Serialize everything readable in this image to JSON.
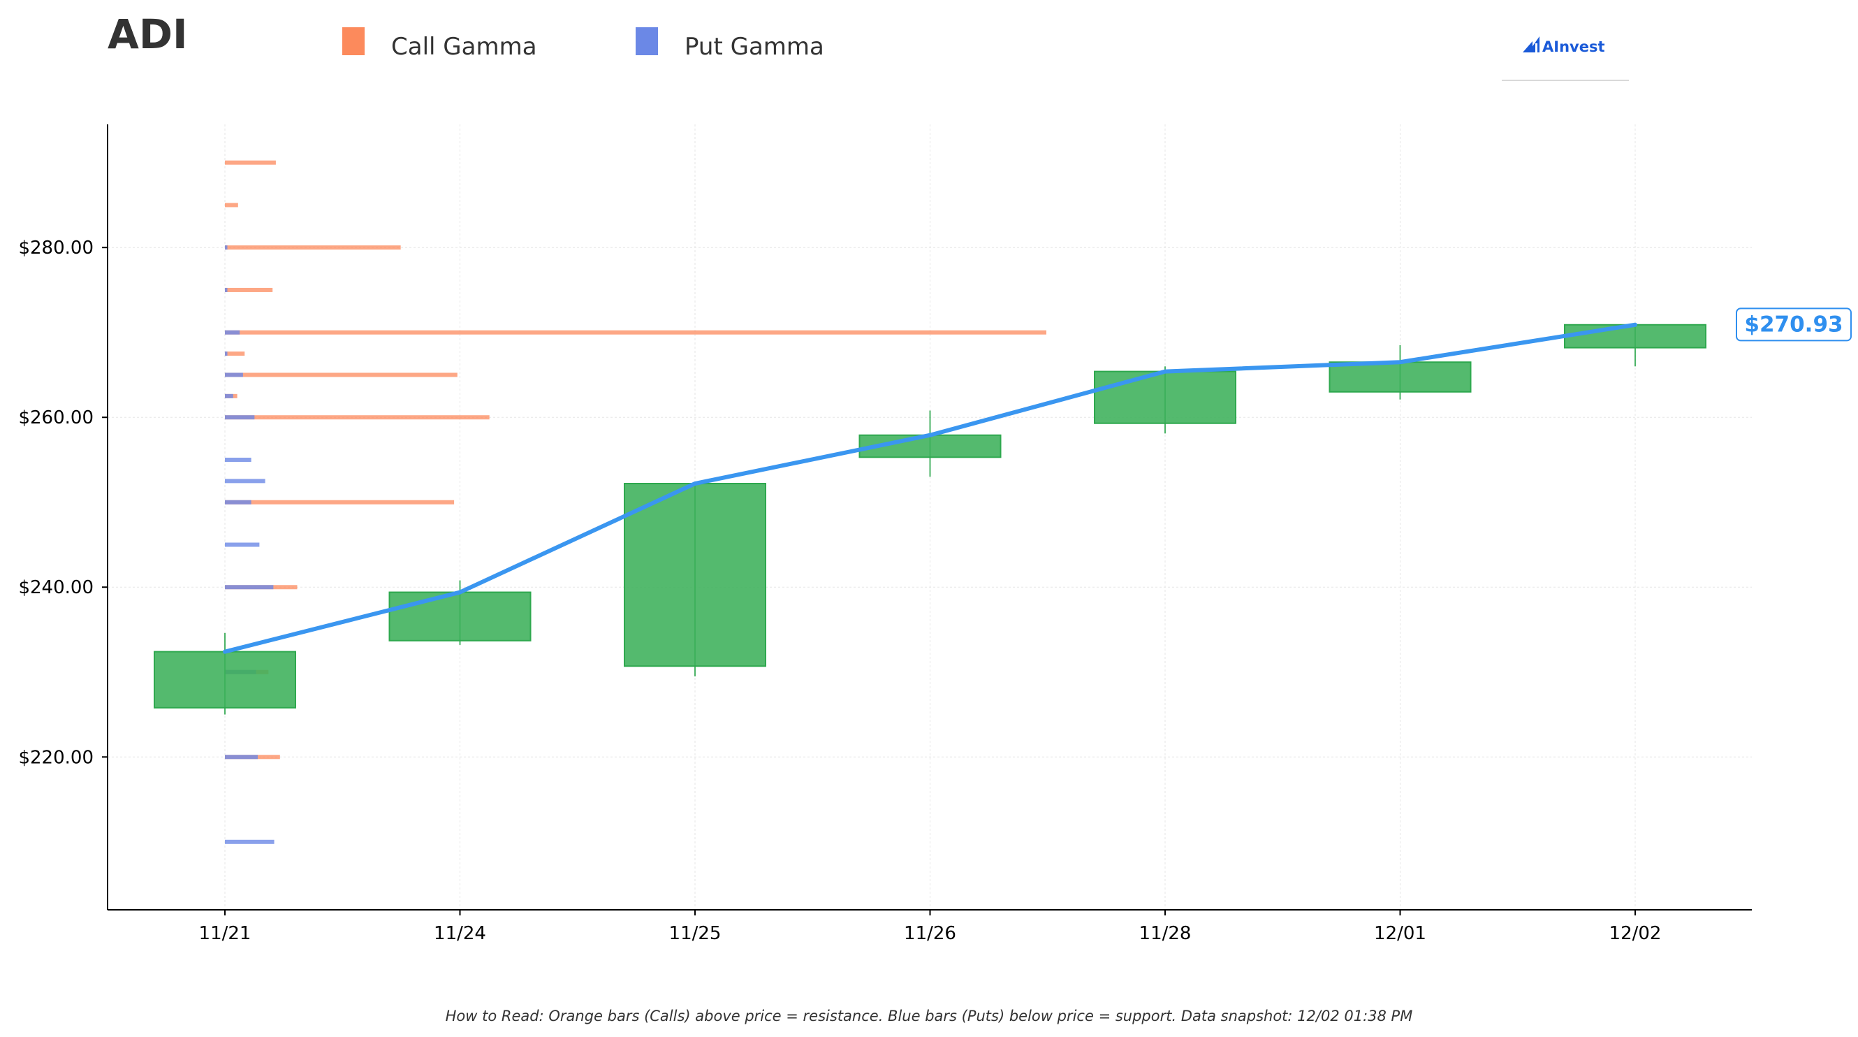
{
  "chart_data": {
    "type": "candlestick",
    "ticker": "ADI",
    "brand": "AInvest",
    "legend": [
      {
        "label": "Call Gamma",
        "color": "#fc8a5c"
      },
      {
        "label": "Put Gamma",
        "color": "#6b88e6"
      }
    ],
    "categories": [
      "11/21",
      "11/24",
      "11/25",
      "11/26",
      "11/28",
      "12/01",
      "12/02"
    ],
    "y_ticks": [
      {
        "value": 220,
        "label": "$220.00"
      },
      {
        "value": 240,
        "label": "$240.00"
      },
      {
        "value": 260,
        "label": "$260.00"
      },
      {
        "value": 280,
        "label": "$280.00"
      }
    ],
    "ylim": [
      202,
      294.5
    ],
    "grid": true,
    "candles": [
      {
        "date": "11/21",
        "open": 225.8,
        "close": 232.4,
        "high": 234.6,
        "low": 225.0
      },
      {
        "date": "11/24",
        "open": 233.7,
        "close": 239.4,
        "high": 240.8,
        "low": 233.2
      },
      {
        "date": "11/25",
        "open": 230.7,
        "close": 252.2,
        "high": 252.4,
        "low": 229.5
      },
      {
        "date": "11/26",
        "open": 255.3,
        "close": 257.9,
        "high": 260.8,
        "low": 253.0
      },
      {
        "date": "11/28",
        "open": 259.3,
        "close": 265.4,
        "high": 266.0,
        "low": 258.1
      },
      {
        "date": "12/01",
        "open": 263.0,
        "close": 266.5,
        "high": 268.5,
        "low": 262.1
      },
      {
        "date": "12/02",
        "open": 268.2,
        "close": 270.9,
        "high": 271.0,
        "low": 266.0
      }
    ],
    "close_line": [
      232.4,
      239.4,
      252.2,
      257.9,
      265.4,
      266.5,
      270.9
    ],
    "last_price_label": "$270.93",
    "last_price": 270.93,
    "gamma_scale_max": 1.0,
    "gamma_bars": [
      {
        "strike": 290,
        "call": 0.062,
        "put": 0
      },
      {
        "strike": 285,
        "call": 0.016,
        "put": 0
      },
      {
        "strike": 280,
        "call": 0.214,
        "put": 0.003
      },
      {
        "strike": 275,
        "call": 0.058,
        "put": 0.003
      },
      {
        "strike": 270,
        "call": 1.0,
        "put": 0.018
      },
      {
        "strike": 267.5,
        "call": 0.024,
        "put": 0.003
      },
      {
        "strike": 265,
        "call": 0.283,
        "put": 0.022
      },
      {
        "strike": 262.5,
        "call": 0.015,
        "put": 0.01
      },
      {
        "strike": 260,
        "call": 0.322,
        "put": 0.036
      },
      {
        "strike": 255,
        "call": 0,
        "put": 0.032
      },
      {
        "strike": 252.5,
        "call": 0,
        "put": 0.049
      },
      {
        "strike": 250,
        "call": 0.279,
        "put": 0.032
      },
      {
        "strike": 245,
        "call": 0,
        "put": 0.042
      },
      {
        "strike": 240,
        "call": 0.088,
        "put": 0.059
      },
      {
        "strike": 230,
        "call": 0.053,
        "put": 0.038
      },
      {
        "strike": 220,
        "call": 0.067,
        "put": 0.04
      },
      {
        "strike": 210,
        "call": 0,
        "put": 0.06
      }
    ],
    "footer_text": "How to Read: Orange bars (Calls) above price = resistance. Blue bars (Puts) below price = support. Data snapshot: 12/02 01:38 PM",
    "colors": {
      "candle_up": "#3cb05a",
      "candle_up_edge": "#2ea84e",
      "close_line": "#3a96f0",
      "call": "#fc8a5c",
      "put": "#6b88e6",
      "grid": "#e6e6e6"
    }
  }
}
